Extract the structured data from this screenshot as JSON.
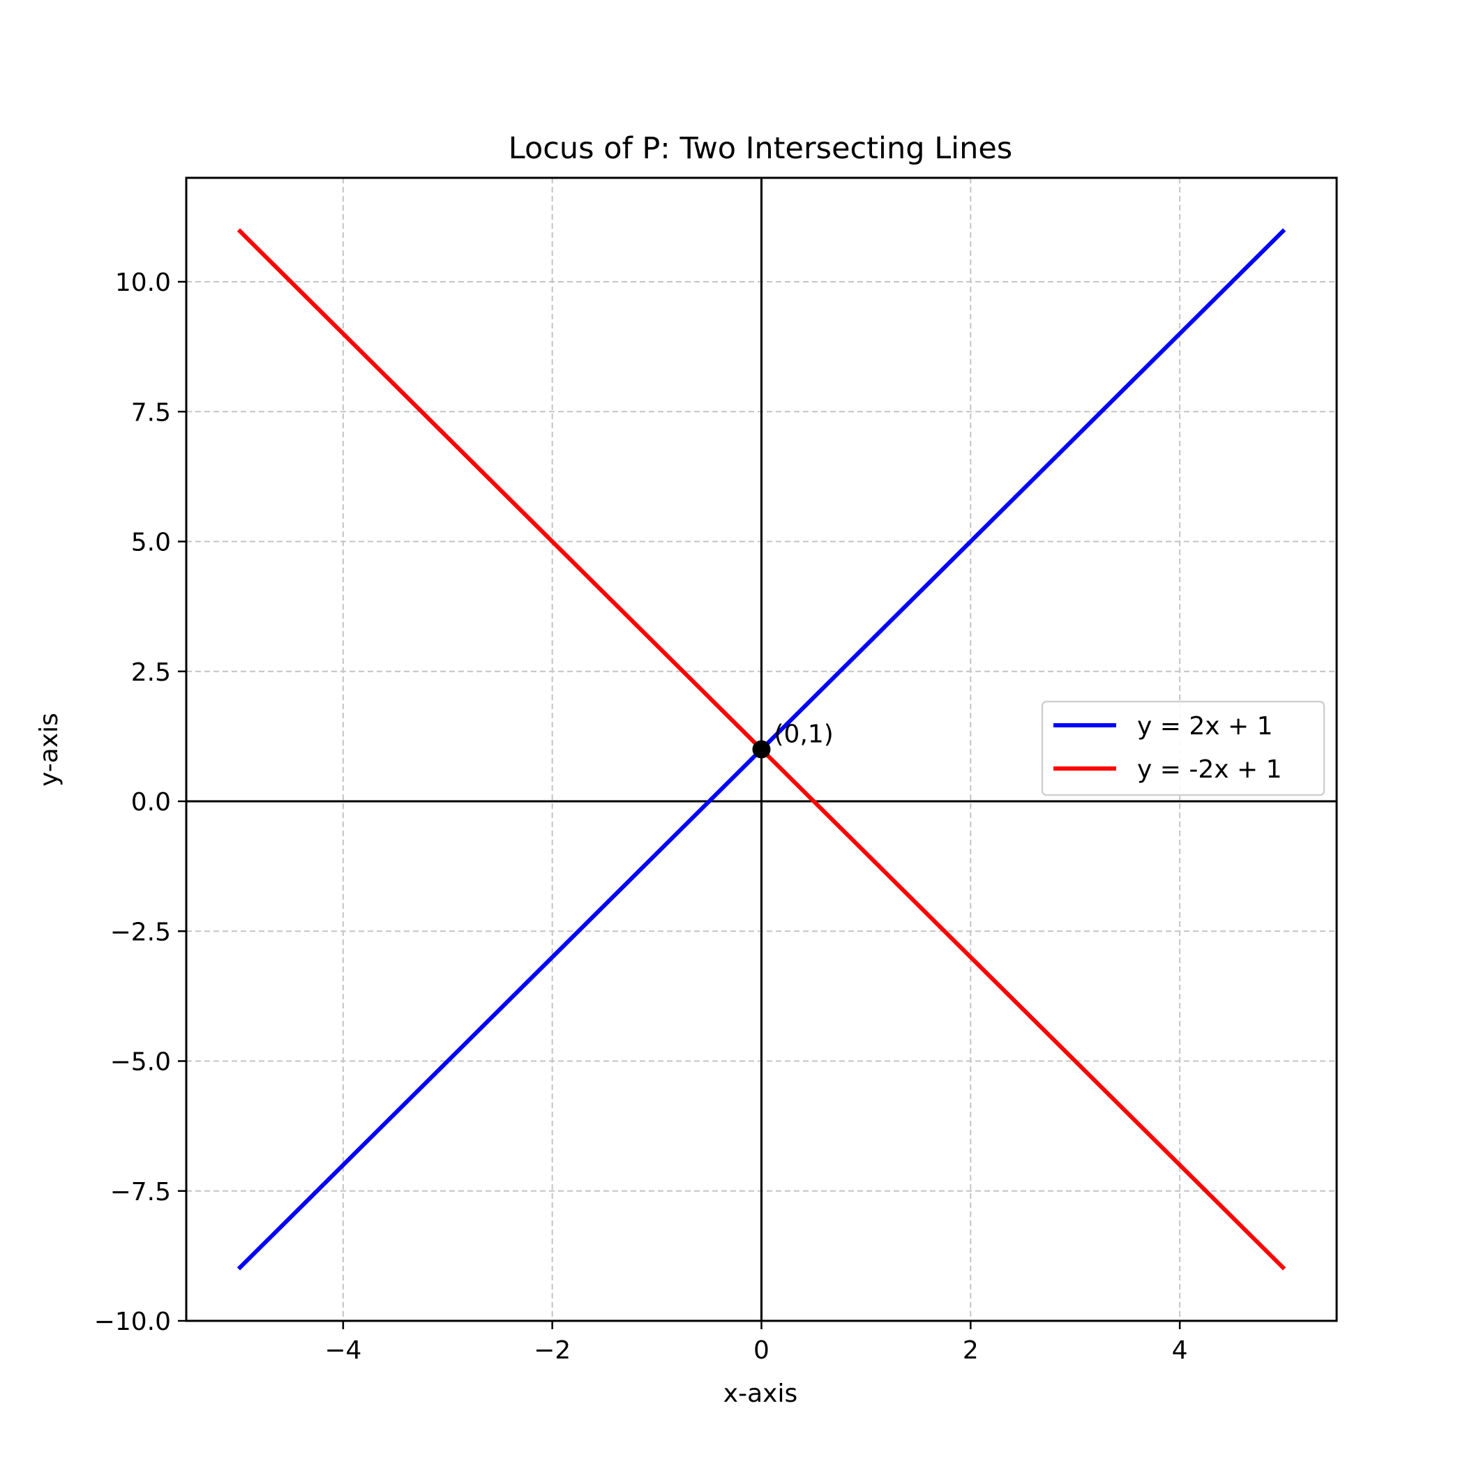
{
  "chart_data": {
    "type": "line",
    "title": "Locus of P: Two Intersecting Lines",
    "xlabel": "x-axis",
    "ylabel": "y-axis",
    "xlim": [
      -5.5,
      5.5
    ],
    "ylim": [
      -10.0,
      12.0
    ],
    "xticks": [
      -4,
      -2,
      0,
      2,
      4
    ],
    "xtick_labels": [
      "−4",
      "−2",
      "0",
      "2",
      "4"
    ],
    "yticks": [
      -10.0,
      -7.5,
      -5.0,
      -2.5,
      0.0,
      2.5,
      5.0,
      7.5,
      10.0
    ],
    "ytick_labels": [
      "−10.0",
      "−7.5",
      "−5.0",
      "−2.5",
      "0.0",
      "2.5",
      "5.0",
      "7.5",
      "10.0"
    ],
    "grid": true,
    "grid_style": "dashed",
    "legend_position": "center-right",
    "series": [
      {
        "name": "y = 2x + 1",
        "color": "#0000ff",
        "x": [
          -5,
          5
        ],
        "y": [
          -9,
          11
        ]
      },
      {
        "name": "y = -2x + 1",
        "color": "#ff0000",
        "x": [
          -5,
          5
        ],
        "y": [
          11,
          -9
        ]
      }
    ],
    "reference_lines": [
      {
        "orientation": "horizontal",
        "value": 0,
        "color": "#000000"
      },
      {
        "orientation": "vertical",
        "value": 0,
        "color": "#000000"
      }
    ],
    "points": [
      {
        "x": 0,
        "y": 1,
        "label": "(0,1)",
        "color": "#000000"
      }
    ]
  }
}
